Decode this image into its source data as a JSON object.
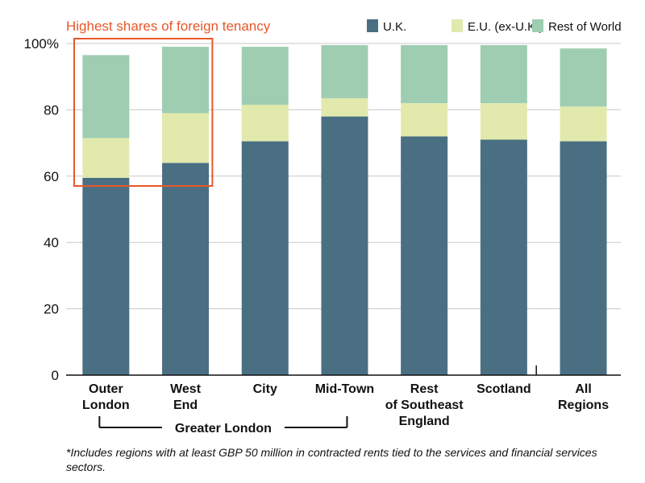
{
  "chart_data": {
    "type": "bar",
    "stacked": true,
    "categories": [
      [
        "Outer",
        "London"
      ],
      [
        "West",
        "End"
      ],
      [
        "City"
      ],
      [
        "Mid-Town"
      ],
      [
        "Rest",
        "of Southeast",
        "England"
      ],
      [
        "Scotland"
      ],
      [
        "All",
        "Regions"
      ]
    ],
    "series": [
      {
        "name": "U.K.",
        "color": "#4a6f83",
        "values": [
          59.5,
          64,
          70.5,
          78,
          72,
          71,
          70.5
        ]
      },
      {
        "name": "E.U. (ex-U.K.)",
        "color": "#e1eaac",
        "values": [
          12,
          15,
          11,
          5.5,
          10,
          11,
          10.5
        ]
      },
      {
        "name": "Rest of World",
        "color": "#9ecdb1",
        "values": [
          25,
          20,
          17.5,
          16,
          17.5,
          17.5,
          17.5
        ]
      }
    ],
    "y_ticks": [
      "0",
      "20",
      "40",
      "60",
      "80",
      "100%"
    ],
    "ylim": [
      0,
      100
    ],
    "grid": true,
    "legend_position": "top-right",
    "annotation": {
      "text": "Highest shares of foreign tenancy",
      "highlight_categories": [
        0,
        1
      ],
      "color": "#e8572a"
    },
    "group_bracket": {
      "label": "Greater London",
      "categories": [
        0,
        1,
        2,
        3
      ]
    }
  },
  "footnote": "*Includes regions with at least GBP 50 million in contracted rents tied to the services and financial services sectors."
}
